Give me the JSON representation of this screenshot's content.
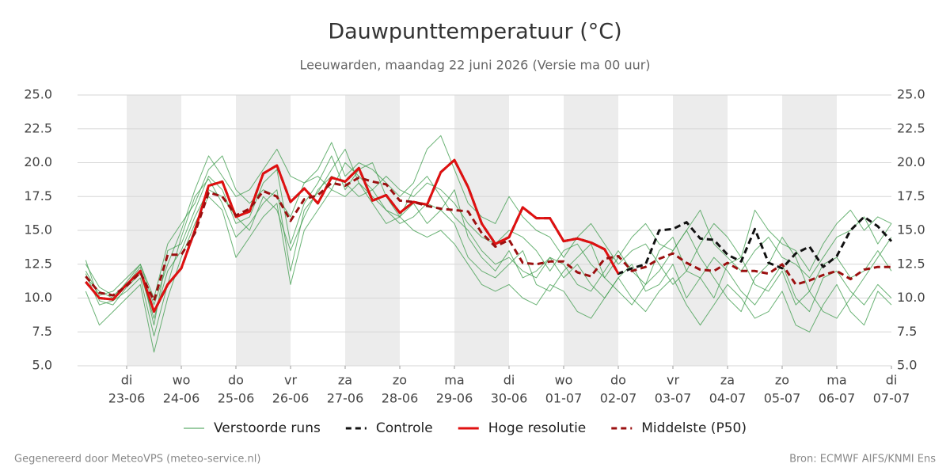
{
  "chart_data": {
    "type": "line",
    "title": "Dauwpunttemperatuur (°C)",
    "subtitle": "Leeuwarden, maandag 22 juni 2026 (Versie ma 00 uur)",
    "footer_left": "Gegenereerd door MeteoVPS (meteo-service.nl)",
    "footer_right": "Bron: ECMWF AIFS/KNMI Ens",
    "xlim": [
      -0.9,
      14
    ],
    "ylim": [
      5,
      25
    ],
    "yticks": [
      {
        "value": 5,
        "label": "5.0"
      },
      {
        "value": 7.5,
        "label": "7.5"
      },
      {
        "value": 10,
        "label": "10.0"
      },
      {
        "value": 12.5,
        "label": "12.5"
      },
      {
        "value": 15,
        "label": "15.0"
      },
      {
        "value": 17.5,
        "label": "17.5"
      },
      {
        "value": 20,
        "label": "20.0"
      },
      {
        "value": 22.5,
        "label": "22.5"
      },
      {
        "value": 25,
        "label": "25.0"
      }
    ],
    "xticks": [
      {
        "value": 0,
        "label": "di"
      },
      {
        "value": 1,
        "label": "wo"
      },
      {
        "value": 2,
        "label": "do"
      },
      {
        "value": 3,
        "label": "vr"
      },
      {
        "value": 4,
        "label": "za"
      },
      {
        "value": 5,
        "label": "zo"
      },
      {
        "value": 6,
        "label": "ma"
      },
      {
        "value": 7,
        "label": "di"
      },
      {
        "value": 8,
        "label": "wo"
      },
      {
        "value": 9,
        "label": "do"
      },
      {
        "value": 10,
        "label": "vr"
      },
      {
        "value": 11,
        "label": "za"
      },
      {
        "value": 12,
        "label": "zo"
      },
      {
        "value": 13,
        "label": "ma"
      },
      {
        "value": 14,
        "label": "di"
      }
    ],
    "xtick_dates": [
      "23-06",
      "24-06",
      "25-06",
      "26-06",
      "27-06",
      "28-06",
      "29-06",
      "30-06",
      "01-07",
      "02-07",
      "03-07",
      "04-07",
      "05-07",
      "06-07",
      "07-07"
    ],
    "grid": true,
    "shade_alternate_days": true,
    "x": [
      -0.75,
      -0.5,
      -0.25,
      0,
      0.25,
      0.5,
      0.75,
      1,
      1.25,
      1.5,
      1.75,
      2,
      2.25,
      2.5,
      2.75,
      3,
      3.25,
      3.5,
      3.75,
      4,
      4.25,
      4.5,
      4.75,
      5,
      5.25,
      5.5,
      5.75,
      6,
      6.25,
      6.5,
      6.75,
      7,
      7.25,
      7.5,
      7.75,
      8,
      8.25,
      8.5,
      8.75,
      9,
      9.25,
      9.5,
      9.75,
      10,
      10.25,
      10.5,
      10.75,
      11,
      11.25,
      11.5,
      11.75,
      12,
      12.25,
      12.5,
      12.75,
      13,
      13.25,
      13.5,
      13.75,
      14
    ],
    "ensemble": {
      "name": "Verstoorde runs",
      "color": "#3a9a48",
      "members": [
        [
          12.5,
          10.8,
          10.2,
          11.0,
          12.3,
          8.0,
          13.5,
          14.0,
          16.5,
          19.0,
          18.0,
          15.5,
          16.0,
          18.5,
          19.5,
          14.0,
          17.0,
          18.5,
          20.5,
          18.0,
          19.5,
          20.0,
          17.5,
          16.0,
          18.0,
          19.0,
          17.5,
          16.0,
          15.0,
          13.5,
          12.5,
          13.0,
          12.0,
          11.5,
          13.0,
          12.5,
          11.0,
          10.5,
          12.0,
          13.5,
          12.0,
          11.0,
          13.5,
          14.5,
          12.0,
          11.5,
          10.0,
          12.5,
          13.0,
          11.0,
          10.5,
          12.0,
          9.5,
          10.5,
          12.5,
          13.0,
          11.5,
          12.0,
          13.5,
          12.0
        ],
        [
          11.8,
          9.5,
          9.8,
          10.5,
          11.5,
          7.2,
          11.0,
          14.5,
          17.5,
          18.8,
          17.0,
          14.5,
          15.5,
          17.0,
          18.0,
          12.0,
          16.5,
          17.8,
          19.5,
          21.0,
          18.5,
          17.5,
          16.5,
          15.5,
          16.0,
          17.0,
          16.5,
          15.5,
          13.0,
          12.0,
          11.5,
          12.5,
          13.5,
          11.0,
          10.5,
          12.0,
          13.0,
          14.0,
          11.5,
          10.5,
          9.5,
          11.0,
          12.0,
          13.5,
          15.0,
          13.0,
          11.5,
          10.0,
          9.0,
          11.5,
          12.5,
          14.5,
          13.0,
          10.5,
          9.0,
          8.5,
          10.0,
          11.5,
          13.0,
          14.5
        ],
        [
          12.0,
          10.2,
          10.5,
          11.5,
          12.5,
          9.5,
          12.5,
          15.0,
          18.0,
          20.5,
          19.0,
          17.5,
          18.0,
          19.5,
          21.0,
          19.0,
          18.5,
          19.5,
          21.5,
          19.0,
          20.0,
          19.5,
          18.5,
          17.5,
          18.5,
          21.0,
          22.0,
          19.5,
          17.0,
          16.0,
          15.5,
          17.5,
          16.0,
          15.0,
          14.5,
          13.0,
          14.5,
          15.5,
          14.0,
          12.5,
          13.5,
          14.0,
          12.5,
          11.0,
          12.0,
          14.0,
          15.5,
          14.5,
          13.0,
          16.5,
          15.0,
          14.0,
          13.5,
          12.0,
          14.0,
          15.5,
          16.5,
          15.0,
          16.0,
          15.5
        ],
        [
          10.5,
          8.0,
          9.0,
          10.0,
          11.0,
          6.0,
          10.0,
          13.0,
          15.5,
          17.5,
          16.5,
          13.0,
          14.5,
          16.0,
          17.0,
          11.0,
          15.0,
          16.5,
          18.0,
          17.5,
          18.5,
          17.0,
          15.5,
          16.0,
          15.0,
          14.5,
          15.0,
          14.0,
          12.5,
          11.0,
          10.5,
          11.0,
          10.0,
          9.5,
          11.0,
          10.5,
          9.0,
          8.5,
          10.0,
          11.5,
          10.0,
          9.0,
          10.5,
          11.5,
          9.5,
          8.0,
          9.5,
          11.0,
          10.0,
          8.5,
          9.0,
          10.5,
          8.0,
          7.5,
          9.5,
          11.0,
          9.0,
          8.0,
          10.5,
          9.5
        ],
        [
          11.5,
          10.5,
          10.0,
          11.2,
          12.5,
          10.0,
          14.0,
          15.5,
          17.0,
          19.5,
          20.5,
          18.0,
          17.0,
          18.0,
          17.5,
          16.0,
          18.5,
          19.0,
          18.0,
          20.0,
          19.0,
          18.0,
          19.0,
          18.0,
          17.5,
          18.5,
          18.0,
          17.0,
          15.5,
          14.5,
          14.0,
          15.0,
          14.5,
          13.5,
          12.0,
          13.5,
          14.0,
          12.5,
          11.5,
          13.0,
          14.5,
          15.5,
          14.0,
          13.5,
          15.0,
          16.5,
          14.0,
          13.0,
          12.0,
          13.5,
          14.5,
          13.0,
          12.5,
          11.5,
          13.0,
          14.5,
          15.0,
          16.0,
          14.0,
          15.5
        ],
        [
          12.8,
          9.8,
          9.5,
          10.8,
          11.8,
          8.5,
          12.0,
          13.5,
          16.0,
          18.0,
          17.5,
          16.0,
          15.0,
          17.5,
          16.5,
          13.5,
          16.0,
          18.0,
          19.0,
          18.5,
          17.5,
          18.0,
          16.5,
          16.0,
          17.0,
          15.5,
          16.5,
          18.0,
          14.5,
          13.0,
          12.0,
          13.5,
          11.5,
          12.0,
          13.0,
          11.5,
          12.5,
          11.0,
          10.0,
          11.5,
          12.5,
          10.5,
          11.0,
          12.5,
          10.0,
          11.5,
          13.0,
          12.0,
          10.5,
          9.5,
          11.0,
          12.5,
          10.0,
          9.0,
          11.5,
          12.0,
          10.5,
          9.5,
          11.0,
          10.0
        ]
      ]
    },
    "series": [
      {
        "name": "Controle",
        "color": "#111111",
        "dash": true,
        "values": [
          11.2,
          10.0,
          9.9,
          11.0,
          12.0,
          9.0,
          11.0,
          12.2,
          15.0,
          18.3,
          18.6,
          16.0,
          16.4,
          19.2,
          19.8,
          17.1,
          18.1,
          17.0,
          18.9,
          18.6,
          19.6,
          17.2,
          17.6,
          16.3,
          17.1,
          16.9,
          19.3,
          20.2,
          18.2,
          15.5,
          14.0,
          14.5,
          16.7,
          15.9,
          15.9,
          14.2,
          14.4,
          14.1,
          13.6,
          11.8,
          12.2,
          12.5,
          15.0,
          15.1,
          15.6,
          14.4,
          14.3,
          13.2,
          12.7,
          15.1,
          12.6,
          12.2,
          13.3,
          13.8,
          12.3,
          13.1,
          15.0,
          16.0,
          15.3,
          14.2
        ]
      },
      {
        "name": "Hoge resolutie",
        "color": "#e01010",
        "dash": false,
        "values": [
          11.2,
          10.0,
          9.9,
          11.0,
          12.0,
          9.0,
          11.0,
          12.2,
          15.0,
          18.3,
          18.6,
          16.0,
          16.4,
          19.2,
          19.8,
          17.1,
          18.1,
          17.0,
          18.9,
          18.6,
          19.6,
          17.2,
          17.6,
          16.3,
          17.1,
          16.9,
          19.3,
          20.2,
          18.2,
          15.5,
          14.0,
          14.5,
          16.7,
          15.9,
          15.9,
          14.2,
          14.4,
          14.1,
          13.6,
          11.8,
          null,
          null,
          null,
          null,
          null,
          null,
          null,
          null,
          null,
          null,
          null,
          null,
          null,
          null,
          null,
          null,
          null,
          null,
          null,
          null
        ]
      },
      {
        "name": "Middelste (P50)",
        "color": "#9b1010",
        "dash": true,
        "values": [
          11.6,
          10.4,
          10.2,
          10.9,
          11.9,
          9.8,
          13.2,
          13.2,
          14.8,
          17.8,
          17.5,
          16.1,
          16.6,
          17.9,
          17.5,
          15.7,
          17.3,
          17.6,
          18.5,
          18.3,
          18.9,
          18.6,
          18.4,
          17.2,
          17.1,
          16.8,
          16.6,
          16.5,
          16.4,
          14.8,
          13.8,
          14.3,
          12.6,
          12.5,
          12.7,
          12.7,
          11.9,
          11.6,
          12.9,
          13.1,
          12.0,
          12.3,
          12.9,
          13.3,
          12.6,
          12.1,
          12.0,
          12.6,
          12.0,
          12.0,
          11.8,
          12.5,
          11.0,
          11.3,
          11.7,
          12.0,
          11.4,
          12.1,
          12.3,
          12.3
        ]
      }
    ]
  }
}
